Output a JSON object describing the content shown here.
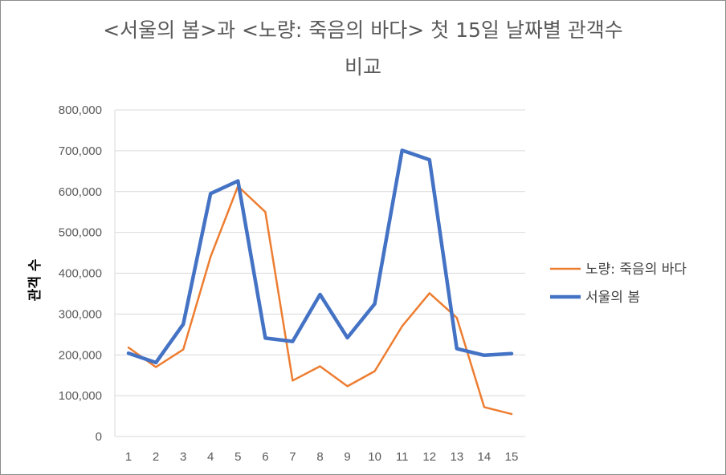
{
  "chart_data": {
    "type": "line",
    "title_line1": "<서울의 봄>과 <노량: 죽음의 바다> 첫 15일 날짜별 관객수",
    "title_line2": "비교",
    "xlabel": "",
    "ylabel": "관객 수",
    "categories": [
      "1",
      "2",
      "3",
      "4",
      "5",
      "6",
      "7",
      "8",
      "9",
      "10",
      "11",
      "12",
      "13",
      "14",
      "15"
    ],
    "ylim": [
      0,
      800000
    ],
    "yticks": [
      0,
      100000,
      200000,
      300000,
      400000,
      500000,
      600000,
      700000,
      800000
    ],
    "ytick_labels": [
      "0",
      "100,000",
      "200,000",
      "300,000",
      "400,000",
      "500,000",
      "600,000",
      "700,000",
      "800,000"
    ],
    "grid": true,
    "legend_position": "right",
    "series": [
      {
        "name": "노량: 죽음의 바다",
        "color": "#ed7d31",
        "values": [
          218000,
          170000,
          213000,
          440000,
          613000,
          550000,
          137000,
          172000,
          123000,
          160000,
          270000,
          351000,
          291000,
          72000,
          55000
        ]
      },
      {
        "name": "서울의 봄",
        "color": "#4472c4",
        "values": [
          204000,
          181000,
          275000,
          595000,
          626000,
          241000,
          233000,
          348000,
          242000,
          325000,
          701000,
          678000,
          215000,
          199000,
          203000
        ]
      }
    ]
  }
}
